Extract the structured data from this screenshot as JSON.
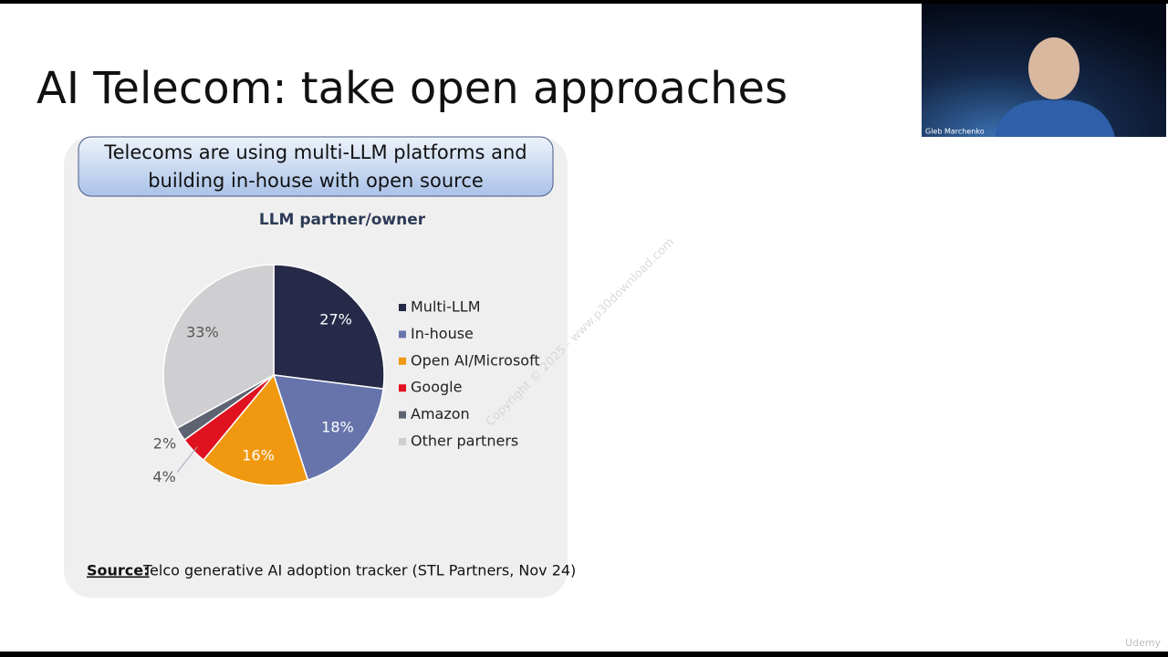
{
  "slide": {
    "title": "AI Telecom: take open approaches",
    "banner": [
      "Telecoms are using multi-LLM platforms and",
      "building in-house with open source"
    ],
    "source_label": "Source:",
    "source_text": "Telco generative AI adoption tracker (STL Partners, Nov 24)",
    "watermark": "Copyright © 2025 - www.p30download.com",
    "presenter": "Gleb Marchenko",
    "logo": "Udemy"
  },
  "chart_data": {
    "type": "pie",
    "title": "LLM partner/owner",
    "categories": [
      "Multi-LLM",
      "In-house",
      "Open AI/Microsoft",
      "Google",
      "Amazon",
      "Other partners"
    ],
    "values": [
      27,
      18,
      16,
      4,
      2,
      33
    ],
    "value_labels": [
      "27%",
      "18%",
      "16%",
      "4%",
      "2%",
      "33%"
    ],
    "colors": [
      "#262a48",
      "#6674ab",
      "#f0980f",
      "#e0121f",
      "#5d6370",
      "#cfcfd2"
    ],
    "legend": "right"
  }
}
